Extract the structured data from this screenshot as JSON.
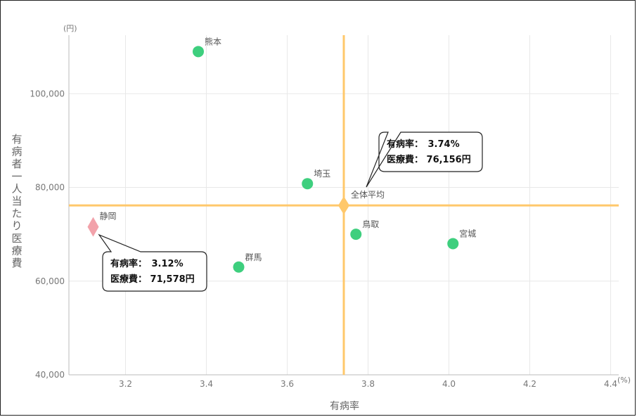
{
  "chart_data": {
    "type": "scatter",
    "xlabel": "有病率",
    "ylabel": "有病者一人当たり医療費",
    "x_unit": "(%)",
    "y_unit": "(円)",
    "xlim": [
      3.06,
      4.42
    ],
    "ylim": [
      40000,
      112500
    ],
    "x_ticks": [
      {
        "value": 3.2,
        "label": "3.2"
      },
      {
        "value": 3.4,
        "label": "3.4"
      },
      {
        "value": 3.6,
        "label": "3.6"
      },
      {
        "value": 3.8,
        "label": "3.8"
      },
      {
        "value": 4.0,
        "label": "4.0"
      },
      {
        "value": 4.2,
        "label": "4.2"
      },
      {
        "value": 4.4,
        "label": "4.4"
      }
    ],
    "y_ticks": [
      {
        "value": 40000,
        "label": "40,000"
      },
      {
        "value": 60000,
        "label": "60,000"
      },
      {
        "value": 80000,
        "label": "80,000"
      },
      {
        "value": 100000,
        "label": "100,000"
      }
    ],
    "grid": true,
    "points": [
      {
        "name": "熊本",
        "x": 3.38,
        "y": 109000,
        "color": "#3ecf7e"
      },
      {
        "name": "埼玉",
        "x": 3.65,
        "y": 80800,
        "color": "#3ecf7e"
      },
      {
        "name": "群馬",
        "x": 3.48,
        "y": 63000,
        "color": "#3ecf7e"
      },
      {
        "name": "鳥取",
        "x": 3.77,
        "y": 70000,
        "color": "#3ecf7e"
      },
      {
        "name": "宮城",
        "x": 4.01,
        "y": 68000,
        "color": "#3ecf7e"
      }
    ],
    "average": {
      "name": "全体平均",
      "x": 3.74,
      "y": 76156,
      "color": "#ffc86b"
    },
    "highlight": {
      "name": "静岡",
      "x": 3.12,
      "y": 71578,
      "color": "#f2a2aa"
    },
    "callouts": [
      {
        "id": "average",
        "line1": "有病率：　3.74%",
        "line2": "医療費：  76,156円"
      },
      {
        "id": "highlight",
        "line1": "有病率：　3.12%",
        "line2": "医療費：  71,578円"
      }
    ]
  }
}
